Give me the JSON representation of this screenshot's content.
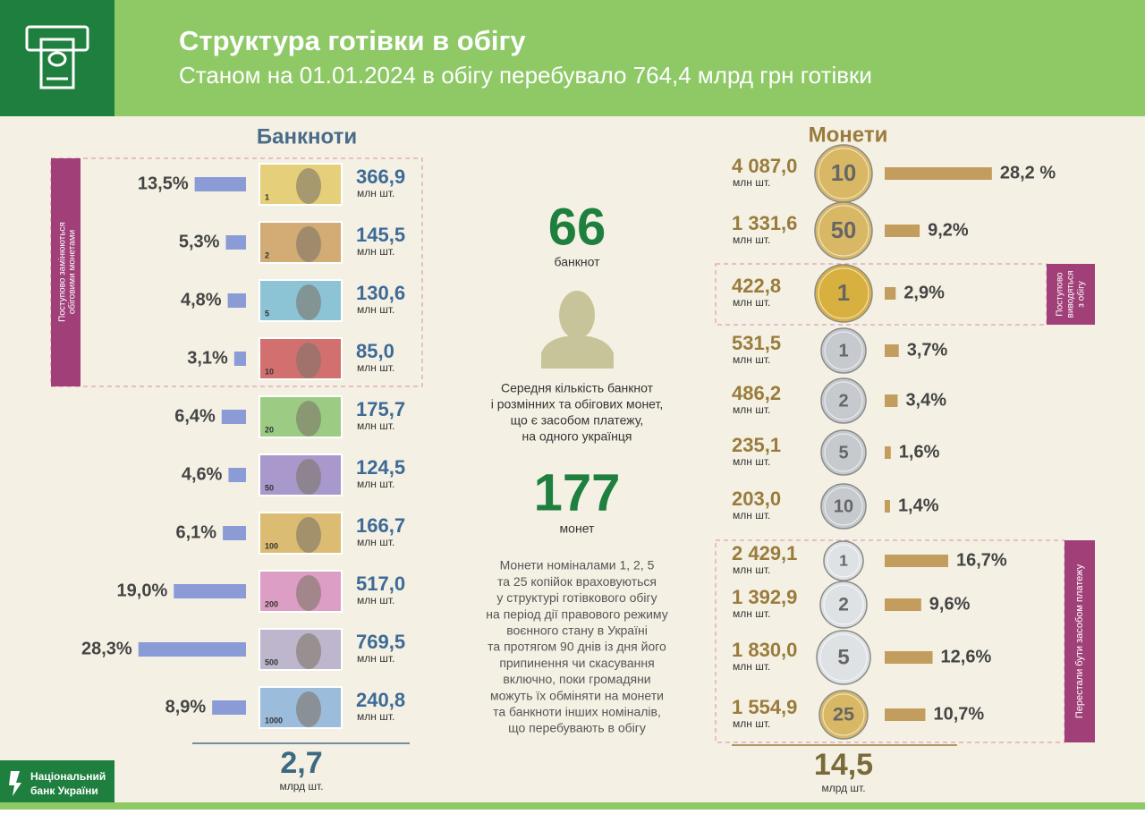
{
  "header": {
    "title": "Структура готівки в обігу",
    "subtitle": "Станом на 01.01.2024 в обігу перебувало 764,4 млрд грн готівки"
  },
  "banknotes": {
    "title": "Банкноти",
    "unit": "млн шт.",
    "side_label": [
      "Поступово замінюються",
      "обіговими монетами"
    ],
    "total": "2,7",
    "total_unit": "млрд шт.",
    "bar_color": "#8b9bd6",
    "items": [
      {
        "share": 13.5,
        "share_label": "13,5%",
        "count": "366,9",
        "face": "1",
        "color": "#e6cf7a"
      },
      {
        "share": 5.3,
        "share_label": "5,3%",
        "count": "145,5",
        "face": "2",
        "color": "#d2ac74"
      },
      {
        "share": 4.8,
        "share_label": "4,8%",
        "count": "130,6",
        "face": "5",
        "color": "#8cc4d6"
      },
      {
        "share": 3.1,
        "share_label": "3,1%",
        "count": "85,0",
        "face": "10",
        "color": "#d27070"
      },
      {
        "share": 6.4,
        "share_label": "6,4%",
        "count": "175,7",
        "face": "20",
        "color": "#9ccc84"
      },
      {
        "share": 4.6,
        "share_label": "4,6%",
        "count": "124,5",
        "face": "50",
        "color": "#a898cc"
      },
      {
        "share": 6.1,
        "share_label": "6,1%",
        "count": "166,7",
        "face": "100",
        "color": "#dcbc72"
      },
      {
        "share": 19.0,
        "share_label": "19,0%",
        "count": "517,0",
        "face": "200",
        "color": "#dc9ec4"
      },
      {
        "share": 28.3,
        "share_label": "28,3%",
        "count": "769,5",
        "face": "500",
        "color": "#bdb6cc"
      },
      {
        "share": 8.9,
        "share_label": "8,9%",
        "count": "240,8",
        "face": "1000",
        "color": "#9cbcdc"
      }
    ]
  },
  "center": {
    "notes_avg": "66",
    "notes_word": "банкнот",
    "caption": [
      "Середня кількість банкнот",
      "і розмінних та обігових монет,",
      "що є засобом платежу,",
      "на одного українця"
    ],
    "coins_avg": "177",
    "coins_word": "монет",
    "note": [
      "Монети  номіналами 1, 2, 5",
      "та 25 копійок враховуються",
      "у  структурі готівкового обігу",
      "на період дії правового режиму",
      "воєнного стану в Україні",
      "та протягом 90 днів із дня його",
      "припинення чи скасування",
      "включно, поки громадяни",
      "можуть їх обміняти на монети",
      "та банкноти інших номіналів,",
      "що перебувають в  обігу"
    ]
  },
  "coins": {
    "title": "Монети",
    "unit": "млн шт.",
    "total": "14,5",
    "total_unit": "млрд шт.",
    "bar_color": "#c39d5e",
    "side_label_1": [
      "Поступово",
      "виводяться",
      "з обігу"
    ],
    "side_label_2": [
      "Перестали бути засобом  платежу"
    ],
    "items": [
      {
        "share": 28.2,
        "share_label": "28,2 %",
        "count": "4 087,0",
        "face": "10",
        "color": "#d8b865"
      },
      {
        "share": 9.2,
        "share_label": "9,2%",
        "count": "1 331,6",
        "face": "50",
        "color": "#d8b865"
      },
      {
        "share": 2.9,
        "share_label": "2,9%",
        "count": "422,8",
        "face": "1",
        "color": "#d8b040"
      },
      {
        "share": 3.7,
        "share_label": "3,7%",
        "count": "531,5",
        "face": "1",
        "color": "#c6cace"
      },
      {
        "share": 3.4,
        "share_label": "3,4%",
        "count": "486,2",
        "face": "2",
        "color": "#c6cace"
      },
      {
        "share": 1.6,
        "share_label": "1,6%",
        "count": "235,1",
        "face": "5",
        "color": "#c6cace"
      },
      {
        "share": 1.4,
        "share_label": "1,4%",
        "count": "203,0",
        "face": "10",
        "color": "#c6cace"
      },
      {
        "share": 16.7,
        "share_label": "16,7%",
        "count": "2 429,1",
        "face": "1",
        "color": "#dfe2e4"
      },
      {
        "share": 9.6,
        "share_label": "9,6%",
        "count": "1 392,9",
        "face": "2",
        "color": "#dfe2e4"
      },
      {
        "share": 12.6,
        "share_label": "12,6%",
        "count": "1 830,0",
        "face": "5",
        "color": "#dfe2e4"
      },
      {
        "share": 10.7,
        "share_label": "10,7%",
        "count": "1 554,9",
        "face": "25",
        "color": "#d8b865"
      }
    ]
  },
  "footer": {
    "brand": [
      "Національний",
      "банк України"
    ]
  }
}
